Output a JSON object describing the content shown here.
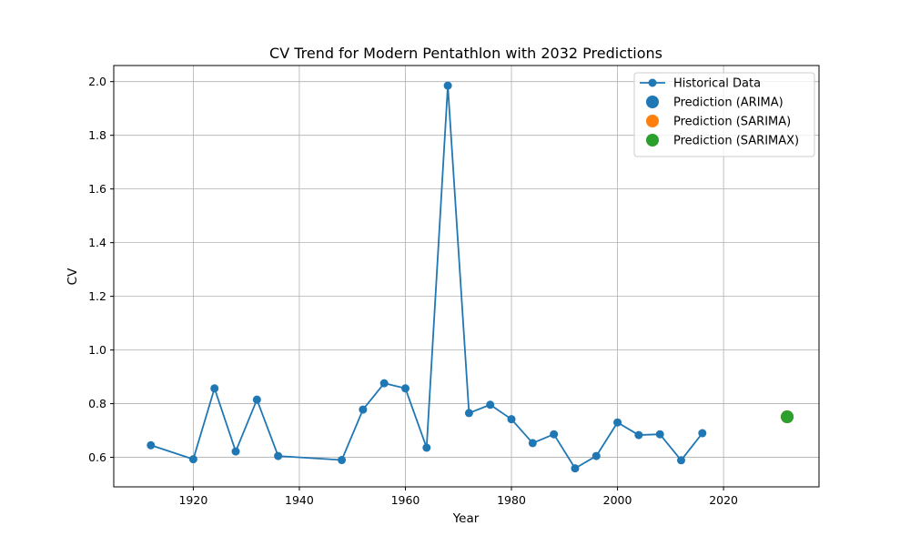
{
  "chart_data": {
    "type": "line",
    "title": "CV Trend for Modern Pentathlon with 2032 Predictions",
    "xlabel": "Year",
    "ylabel": "CV",
    "xlim": [
      1905,
      2038
    ],
    "ylim": [
      0.49,
      2.06
    ],
    "xticks": [
      1920,
      1940,
      1960,
      1980,
      2000,
      2020
    ],
    "yticks": [
      0.6,
      0.8,
      1.0,
      1.2,
      1.4,
      1.6,
      1.8,
      2.0
    ],
    "grid": true,
    "legend_position": "upper right",
    "series": [
      {
        "name": "Historical Data",
        "kind": "line-marker",
        "color": "#1f77b4",
        "x": [
          1912,
          1920,
          1924,
          1928,
          1932,
          1936,
          1948,
          1952,
          1956,
          1960,
          1964,
          1968,
          1972,
          1976,
          1980,
          1984,
          1988,
          1992,
          1996,
          2000,
          2004,
          2008,
          2012,
          2016
        ],
        "y": [
          0.645,
          0.593,
          0.857,
          0.622,
          0.815,
          0.605,
          0.59,
          0.778,
          0.876,
          0.857,
          0.636,
          1.985,
          0.765,
          0.796,
          0.742,
          0.653,
          0.686,
          0.559,
          0.605,
          0.73,
          0.683,
          0.686,
          0.589,
          0.69
        ]
      },
      {
        "name": "Prediction (ARIMA)",
        "kind": "point",
        "color": "#1f77b4",
        "x": [
          2032
        ],
        "y": [
          0.751
        ]
      },
      {
        "name": "Prediction (SARIMA)",
        "kind": "point",
        "color": "#ff7f0e",
        "x": [
          2032
        ],
        "y": [
          0.751
        ]
      },
      {
        "name": "Prediction (SARIMAX)",
        "kind": "point",
        "color": "#2ca02c",
        "x": [
          2032
        ],
        "y": [
          0.751
        ]
      }
    ]
  }
}
